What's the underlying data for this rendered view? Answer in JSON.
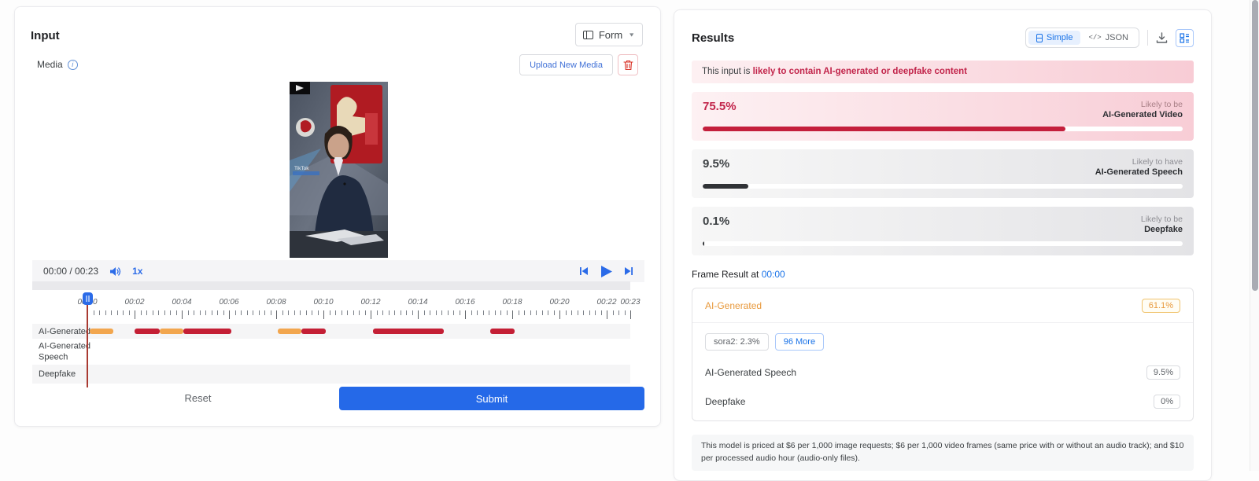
{
  "input_panel": {
    "title": "Input",
    "form_selector": {
      "label": "Form"
    },
    "media_label": "Media",
    "upload_button": "Upload New Media",
    "player": {
      "time": "00:00 / 00:23",
      "speed": "1x"
    },
    "timeline": {
      "tick_labels": [
        "00:00",
        "00:02",
        "00:04",
        "00:06",
        "00:08",
        "00:10",
        "00:12",
        "00:14",
        "00:16",
        "00:18",
        "00:20",
        "00:22",
        "00:23"
      ],
      "duration_seconds": 23,
      "tracks": [
        {
          "label": "AI-Generated"
        },
        {
          "label": "AI-Generated Speech"
        },
        {
          "label": "Deepfake"
        }
      ],
      "segments": [
        {
          "track": 0,
          "start": 0.1,
          "end": 1.1,
          "type": "orange"
        },
        {
          "track": 0,
          "start": 2.0,
          "end": 3.05,
          "type": "red"
        },
        {
          "track": 0,
          "start": 3.05,
          "end": 4.05,
          "type": "orange"
        },
        {
          "track": 0,
          "start": 4.05,
          "end": 6.1,
          "type": "red"
        },
        {
          "track": 0,
          "start": 8.05,
          "end": 9.05,
          "type": "orange"
        },
        {
          "track": 0,
          "start": 9.05,
          "end": 10.1,
          "type": "red"
        },
        {
          "track": 0,
          "start": 12.1,
          "end": 15.1,
          "type": "red"
        },
        {
          "track": 0,
          "start": 17.05,
          "end": 18.1,
          "type": "red"
        }
      ],
      "playhead_time": "00:00"
    },
    "reset_button": "Reset",
    "submit_button": "Submit"
  },
  "results_panel": {
    "title": "Results",
    "view_toggle": {
      "simple_label": "Simple",
      "json_glyph": "</>",
      "json_label": "JSON"
    },
    "banner": {
      "prefix": "This input is ",
      "highlight": "likely to contain AI-generated or deepfake content"
    },
    "scores": [
      {
        "value": "75.5%",
        "pct": 75.5,
        "qualifier": "Likely to be",
        "label": "AI-Generated Video",
        "theme": "red"
      },
      {
        "value": "9.5%",
        "pct": 9.5,
        "qualifier": "Likely to have",
        "label": "AI-Generated Speech",
        "theme": "gray"
      },
      {
        "value": "0.1%",
        "pct": 0.1,
        "qualifier": "Likely to be",
        "label": "Deepfake",
        "theme": "gray"
      }
    ],
    "frame_result": {
      "label": "Frame Result at",
      "time": "00:00",
      "ai_generated": {
        "label": "AI-Generated",
        "value": "61.1%"
      },
      "chips": [
        {
          "label": "sora2: 2.3%"
        },
        {
          "label": "96 More"
        }
      ],
      "rows": [
        {
          "label": "AI-Generated Speech",
          "value": "9.5%"
        },
        {
          "label": "Deepfake",
          "value": "0%"
        }
      ]
    },
    "pricing_note": "This model is priced at $6 per 1,000 image requests; $6 per 1,000 video frames (same price with or without an audio track); and $10 per processed audio hour (audio-only files)."
  }
}
